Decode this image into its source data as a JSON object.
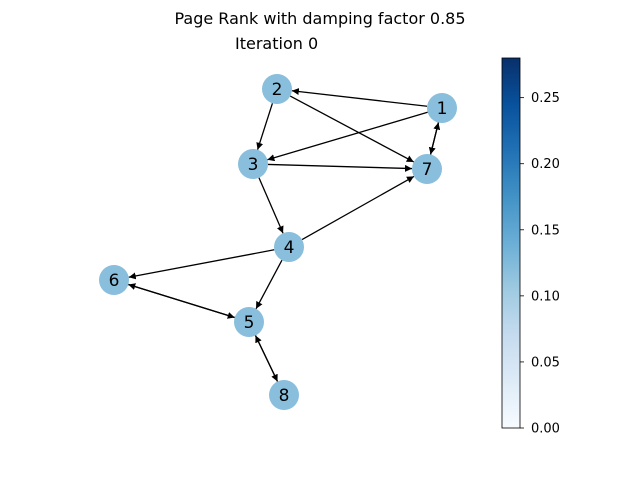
{
  "figure": {
    "title": "Page Rank with damping factor 0.85",
    "subtitle": "Iteration 0"
  },
  "graph": {
    "node_color": "#89bedc",
    "edge_color": "#000000",
    "nodes": [
      {
        "id": "1",
        "value": 0.125
      },
      {
        "id": "2",
        "value": 0.125
      },
      {
        "id": "3",
        "value": 0.125
      },
      {
        "id": "4",
        "value": 0.125
      },
      {
        "id": "5",
        "value": 0.125
      },
      {
        "id": "6",
        "value": 0.125
      },
      {
        "id": "7",
        "value": 0.125
      },
      {
        "id": "8",
        "value": 0.125
      }
    ],
    "edges": [
      {
        "from": "1",
        "to": "2"
      },
      {
        "from": "1",
        "to": "3"
      },
      {
        "from": "1",
        "to": "7"
      },
      {
        "from": "7",
        "to": "1"
      },
      {
        "from": "2",
        "to": "3"
      },
      {
        "from": "2",
        "to": "7"
      },
      {
        "from": "3",
        "to": "7"
      },
      {
        "from": "3",
        "to": "4"
      },
      {
        "from": "4",
        "to": "7"
      },
      {
        "from": "4",
        "to": "6"
      },
      {
        "from": "4",
        "to": "5"
      },
      {
        "from": "5",
        "to": "6"
      },
      {
        "from": "6",
        "to": "5"
      },
      {
        "from": "5",
        "to": "8"
      },
      {
        "from": "8",
        "to": "5"
      }
    ]
  },
  "colorbar": {
    "colormap": "Blues",
    "min": 0.0,
    "max": 0.28,
    "ticks": [
      "0.00",
      "0.05",
      "0.10",
      "0.15",
      "0.20",
      "0.25"
    ]
  }
}
